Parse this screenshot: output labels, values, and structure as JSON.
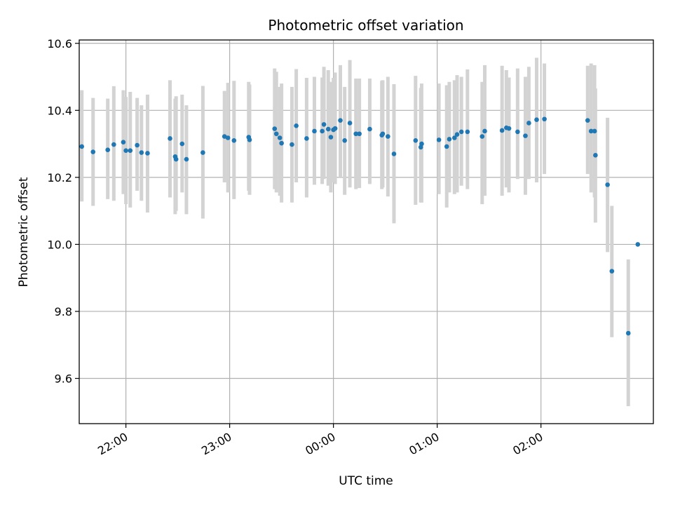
{
  "chart_data": {
    "type": "scatter",
    "title": "Photometric offset variation",
    "xlabel": "UTC time",
    "ylabel": "Photometric offset",
    "x_unit": "minutes after 00:00 UTC",
    "xlim": [
      -147,
      185
    ],
    "ylim": [
      9.465,
      10.61
    ],
    "grid": true,
    "xticks": [
      {
        "value": -120,
        "label": "22:00"
      },
      {
        "value": -60,
        "label": "23:00"
      },
      {
        "value": 0,
        "label": "00:00"
      },
      {
        "value": 60,
        "label": "01:00"
      },
      {
        "value": 120,
        "label": "02:00"
      }
    ],
    "yticks": [
      9.6,
      9.8,
      10.0,
      10.2,
      10.4,
      10.6
    ],
    "colors": {
      "point": "#1f77b4",
      "errorbar": "#d3d3d3",
      "grid": "#b0b0b0"
    },
    "series": [
      {
        "x": [
          -145.5,
          -139,
          -130.5,
          -127,
          -121.5,
          -120,
          -117.5,
          -113.5,
          -111,
          -107.5,
          -94.5,
          -91.5,
          -91,
          -87.5,
          -85,
          -75.5,
          -63,
          -61,
          -57.5,
          -49,
          -48.5,
          -34,
          -33,
          -31,
          -30,
          -24,
          -21.5,
          -15.5,
          -11,
          -6.5,
          -5.5,
          -3,
          -1.5,
          0,
          1,
          4,
          6.5,
          9.5,
          13,
          15,
          21,
          28,
          28.5,
          31.5,
          35,
          47.5,
          50.5,
          51,
          61,
          65.5,
          67,
          70,
          71.5,
          74,
          77.5,
          86,
          87.5,
          97.5,
          100,
          101.5,
          106.5,
          111,
          113,
          117.5,
          122,
          147,
          149,
          151,
          151.5,
          158.5,
          161,
          170.5,
          176
        ],
        "y": [
          10.292,
          10.276,
          10.282,
          10.298,
          10.305,
          10.28,
          10.28,
          10.296,
          10.274,
          10.272,
          10.316,
          10.262,
          10.254,
          10.3,
          10.254,
          10.274,
          10.322,
          10.318,
          10.31,
          10.32,
          10.312,
          10.345,
          10.33,
          10.318,
          10.302,
          10.298,
          10.354,
          10.316,
          10.338,
          10.338,
          10.358,
          10.344,
          10.32,
          10.342,
          10.346,
          10.37,
          10.31,
          10.362,
          10.33,
          10.33,
          10.344,
          10.326,
          10.33,
          10.322,
          10.27,
          10.31,
          10.29,
          10.3,
          10.312,
          10.292,
          10.314,
          10.318,
          10.328,
          10.336,
          10.336,
          10.322,
          10.338,
          10.34,
          10.348,
          10.346,
          10.336,
          10.324,
          10.362,
          10.372,
          10.374,
          10.37,
          10.338,
          10.338,
          10.266,
          10.178,
          9.92,
          9.735,
          10.0
        ],
        "err_low": [
          10.128,
          10.115,
          10.135,
          10.13,
          10.15,
          10.12,
          10.11,
          10.16,
          10.13,
          10.095,
          10.14,
          10.09,
          10.1,
          10.155,
          10.09,
          10.077,
          10.185,
          10.155,
          10.135,
          10.16,
          10.148,
          10.165,
          10.155,
          10.145,
          10.125,
          10.125,
          10.185,
          10.14,
          10.178,
          10.18,
          10.195,
          10.175,
          10.155,
          10.185,
          10.18,
          10.2,
          10.148,
          10.17,
          10.165,
          10.168,
          10.18,
          10.165,
          10.17,
          10.143,
          10.063,
          10.118,
          10.125,
          10.125,
          10.15,
          10.11,
          10.155,
          10.15,
          10.155,
          10.175,
          10.165,
          10.12,
          10.145,
          10.145,
          10.17,
          10.155,
          10.195,
          10.148,
          10.195,
          10.185,
          10.21,
          10.21,
          10.155,
          10.14,
          10.065,
          9.977,
          9.723,
          9.517,
          10.0
        ],
        "err_high": [
          10.46,
          10.437,
          10.435,
          10.472,
          10.46,
          10.44,
          10.455,
          10.437,
          10.415,
          10.447,
          10.49,
          10.435,
          10.442,
          10.447,
          10.415,
          10.473,
          10.458,
          10.482,
          10.488,
          10.485,
          10.477,
          10.525,
          10.515,
          10.47,
          10.48,
          10.47,
          10.523,
          10.497,
          10.5,
          10.498,
          10.53,
          10.52,
          10.485,
          10.497,
          10.513,
          10.535,
          10.47,
          10.55,
          10.495,
          10.495,
          10.495,
          10.488,
          10.49,
          10.5,
          10.478,
          10.503,
          10.467,
          10.48,
          10.48,
          10.475,
          10.485,
          10.49,
          10.505,
          10.5,
          10.522,
          10.485,
          10.535,
          10.533,
          10.52,
          10.498,
          10.525,
          10.5,
          10.53,
          10.557,
          10.54,
          10.533,
          10.54,
          10.535,
          10.465,
          10.378,
          10.115,
          9.955,
          10.0
        ]
      }
    ]
  }
}
